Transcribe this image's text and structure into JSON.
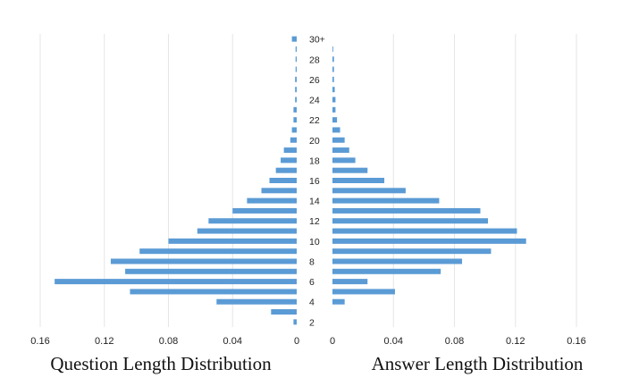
{
  "chart_data": [
    {
      "type": "bar",
      "orientation": "horizontal",
      "direction": "leftward",
      "title": "Question Length Distribution",
      "categories": [
        "2",
        "3",
        "4",
        "5",
        "6",
        "7",
        "8",
        "9",
        "10",
        "11",
        "12",
        "13",
        "14",
        "15",
        "16",
        "17",
        "18",
        "19",
        "20",
        "21",
        "22",
        "23",
        "24",
        "25",
        "26",
        "27",
        "28",
        "29",
        "30+"
      ],
      "values": [
        0.002,
        0.016,
        0.05,
        0.104,
        0.151,
        0.107,
        0.116,
        0.098,
        0.08,
        0.062,
        0.055,
        0.04,
        0.031,
        0.022,
        0.017,
        0.013,
        0.01,
        0.008,
        0.004,
        0.003,
        0.002,
        0.002,
        0.001,
        0.001,
        0.001,
        0.0007,
        0.0007,
        0.0007,
        0.003
      ],
      "xlim": [
        0,
        0.16
      ],
      "xticks": [
        "0.16",
        "0.12",
        "0.08",
        "0.04",
        "0"
      ],
      "grid": true,
      "color": "#5b9bd5"
    },
    {
      "type": "bar",
      "orientation": "horizontal",
      "direction": "rightward",
      "title": "Answer Length Distribution",
      "categories": [
        "2",
        "3",
        "4",
        "5",
        "6",
        "7",
        "8",
        "9",
        "10",
        "11",
        "12",
        "13",
        "14",
        "15",
        "16",
        "17",
        "18",
        "19",
        "20",
        "21",
        "22",
        "23",
        "24",
        "25",
        "26",
        "27",
        "28",
        "29",
        "30+"
      ],
      "values": [
        0.0,
        0.0,
        0.008,
        0.041,
        0.023,
        0.071,
        0.085,
        0.104,
        0.127,
        0.121,
        0.102,
        0.097,
        0.07,
        0.048,
        0.034,
        0.023,
        0.015,
        0.011,
        0.008,
        0.005,
        0.003,
        0.002,
        0.002,
        0.0015,
        0.001,
        0.001,
        0.001,
        0.0005,
        0.0
      ],
      "xlim": [
        0,
        0.16
      ],
      "xticks": [
        "0",
        "0.04",
        "0.08",
        "0.12",
        "0.16"
      ],
      "grid": true,
      "color": "#5b9bd5"
    }
  ],
  "y_labels": [
    "2",
    "4",
    "6",
    "8",
    "10",
    "12",
    "14",
    "16",
    "18",
    "20",
    "22",
    "24",
    "26",
    "28",
    "30+"
  ]
}
